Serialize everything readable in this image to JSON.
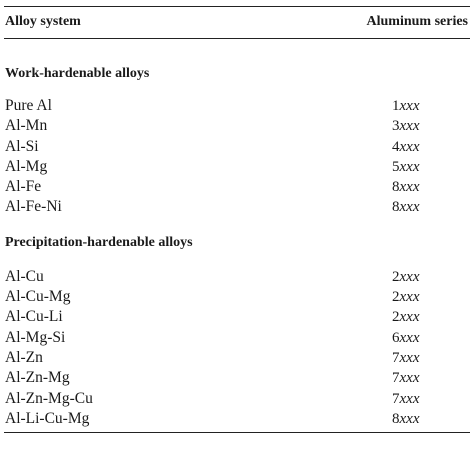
{
  "header": {
    "col_alloy": "Alloy system",
    "col_series": "Aluminum series"
  },
  "sections": [
    {
      "title": "Work-hardenable alloys",
      "rows": [
        {
          "alloy": "Pure Al",
          "digit": "1",
          "suffix": "xxx"
        },
        {
          "alloy": "Al-Mn",
          "digit": "3",
          "suffix": "xxx"
        },
        {
          "alloy": "Al-Si",
          "digit": "4",
          "suffix": "xxx"
        },
        {
          "alloy": "Al-Mg",
          "digit": "5",
          "suffix": "xxx"
        },
        {
          "alloy": "Al-Fe",
          "digit": "8",
          "suffix": "xxx"
        },
        {
          "alloy": "Al-Fe-Ni",
          "digit": "8",
          "suffix": "xxx"
        }
      ]
    },
    {
      "title": "Precipitation-hardenable alloys",
      "rows": [
        {
          "alloy": "Al-Cu",
          "digit": "2",
          "suffix": "xxx"
        },
        {
          "alloy": "Al-Cu-Mg",
          "digit": "2",
          "suffix": "xxx"
        },
        {
          "alloy": "Al-Cu-Li",
          "digit": "2",
          "suffix": "xxx"
        },
        {
          "alloy": "Al-Mg-Si",
          "digit": "6",
          "suffix": "xxx"
        },
        {
          "alloy": "Al-Zn",
          "digit": "7",
          "suffix": "xxx"
        },
        {
          "alloy": "Al-Zn-Mg",
          "digit": "7",
          "suffix": "xxx"
        },
        {
          "alloy": "Al-Zn-Mg-Cu",
          "digit": "7",
          "suffix": "xxx"
        },
        {
          "alloy": "Al-Li-Cu-Mg",
          "digit": "8",
          "suffix": "xxx"
        }
      ]
    }
  ]
}
